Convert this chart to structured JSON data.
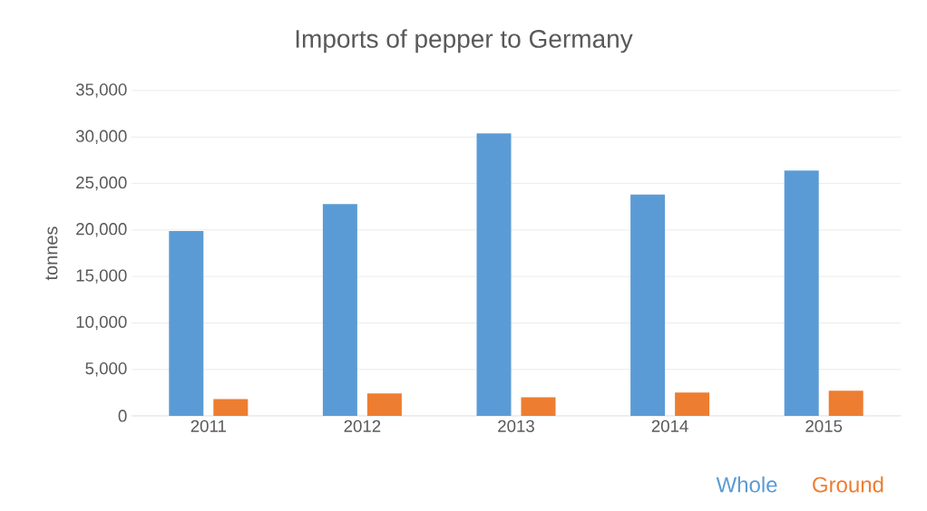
{
  "chart_data": {
    "type": "bar",
    "title": "Imports of pepper to Germany",
    "ylabel": "tonnes",
    "categories": [
      "2011",
      "2012",
      "2013",
      "2014",
      "2015"
    ],
    "series": [
      {
        "name": "Whole",
        "color": "#5b9bd5",
        "values": [
          19900,
          22800,
          30400,
          23800,
          26400
        ]
      },
      {
        "name": "Ground",
        "color": "#ed7d31",
        "values": [
          1800,
          2400,
          2000,
          2500,
          2700
        ]
      }
    ],
    "ylim": [
      0,
      35000
    ],
    "yticks": [
      0,
      {
        "value": 5000,
        "label": "5,000"
      },
      {
        "value": 10000,
        "label": "10,000"
      },
      {
        "value": 15000,
        "label": "15,000"
      },
      {
        "value": 20000,
        "label": "20,000"
      },
      {
        "value": 25000,
        "label": "25,000"
      },
      {
        "value": 30000,
        "label": "30,000"
      },
      {
        "value": 35000,
        "label": "35,000"
      }
    ],
    "grid": "y",
    "legend": "bottom right"
  }
}
